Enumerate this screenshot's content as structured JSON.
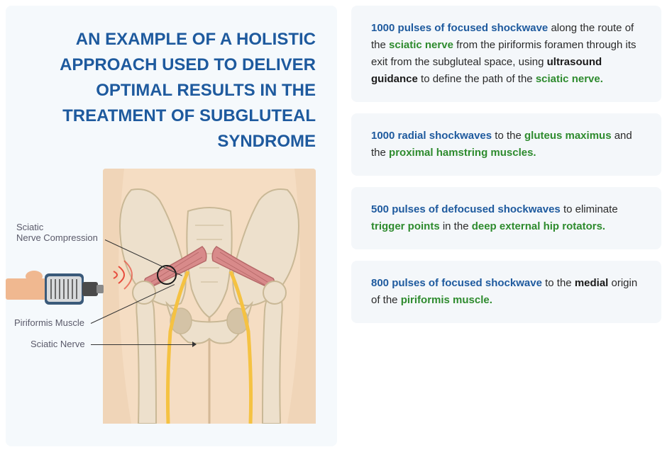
{
  "title": "AN EXAMPLE OF A HOLISTIC APPROACH USED TO DELIVER OPTIMAL RESULTS IN THE TREATMENT OF SUBGLUTEAL SYNDROME",
  "colors": {
    "primary_blue": "#1e5a9e",
    "green": "#2e8b2e",
    "card_bg": "#f4f7fa",
    "left_bg": "#f5f9fc",
    "label_gray": "#5a5a6a",
    "skin": "#f5ddc3",
    "bone": "#ede0cc",
    "bone_shadow": "#c9b896",
    "muscle": "#d88a8a",
    "nerve": "#f5c242"
  },
  "diagram_labels": {
    "sciatic_compression": "Sciatic\nNerve Compression",
    "piriformis": "Piriformis Muscle",
    "sciatic": "Sciatic Nerve"
  },
  "cards": [
    {
      "segments": [
        {
          "text": "1000 pulses of focused shockwave",
          "style": "blue-bold"
        },
        {
          "text": " along the route of the ",
          "style": ""
        },
        {
          "text": "sciatic nerve",
          "style": "green-bold"
        },
        {
          "text": " from the piriformis foramen through its exit from the subgluteal space, using ",
          "style": ""
        },
        {
          "text": "ultrasound guidance",
          "style": "black-bold"
        },
        {
          "text": " to define the path of the ",
          "style": ""
        },
        {
          "text": "sciatic nerve.",
          "style": "green-bold"
        }
      ]
    },
    {
      "segments": [
        {
          "text": "1000 radial shockwaves",
          "style": "blue-bold"
        },
        {
          "text": " to the ",
          "style": ""
        },
        {
          "text": "gluteus maximus",
          "style": "green-bold"
        },
        {
          "text": " and the ",
          "style": ""
        },
        {
          "text": "proximal hamstring muscles.",
          "style": "green-bold"
        }
      ]
    },
    {
      "segments": [
        {
          "text": "500 pulses of defocused shockwaves",
          "style": "blue-bold"
        },
        {
          "text": " to eliminate ",
          "style": ""
        },
        {
          "text": "trigger points",
          "style": "green-bold"
        },
        {
          "text": " in the ",
          "style": ""
        },
        {
          "text": "deep external hip rotators.",
          "style": "green-bold"
        }
      ]
    },
    {
      "segments": [
        {
          "text": "800 pulses of focused shockwave",
          "style": "blue-bold"
        },
        {
          "text": " to the ",
          "style": ""
        },
        {
          "text": "medial",
          "style": "black-bold"
        },
        {
          "text": " origin of the ",
          "style": ""
        },
        {
          "text": "piriformis muscle.",
          "style": "green-bold"
        }
      ]
    }
  ]
}
